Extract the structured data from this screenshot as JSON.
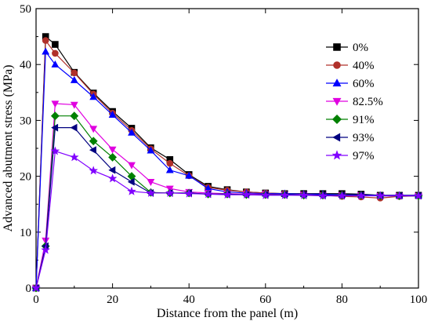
{
  "chart_data": {
    "type": "line",
    "xlabel": "Distance from the panel (m)",
    "ylabel": "Advanced abutment stress (MPa)",
    "xlim": [
      0,
      100
    ],
    "ylim": [
      0,
      50
    ],
    "xticks": [
      0,
      20,
      40,
      60,
      80,
      100
    ],
    "yticks": [
      0,
      10,
      20,
      30,
      40,
      50
    ],
    "grid": false,
    "legend_position": "top-right",
    "series": [
      {
        "name": "0%",
        "color": "#000000",
        "marker": "square",
        "x": [
          0,
          2.5,
          5,
          10,
          15,
          20,
          25,
          30,
          35,
          40,
          45,
          50,
          55,
          60,
          65,
          70,
          75,
          80,
          85,
          90,
          95,
          100
        ],
        "y": [
          0,
          45.0,
          43.6,
          38.6,
          34.9,
          31.6,
          28.6,
          25.1,
          23.0,
          20.3,
          18.2,
          17.6,
          17.2,
          17.0,
          16.9,
          16.9,
          16.9,
          16.9,
          16.8,
          16.6,
          16.6,
          16.6
        ]
      },
      {
        "name": "40%",
        "color": "#b0302a",
        "marker": "circle",
        "x": [
          0,
          2.5,
          5,
          10,
          15,
          20,
          25,
          30,
          35,
          40,
          45,
          50,
          55,
          60,
          65,
          70,
          75,
          80,
          85,
          90,
          95,
          100
        ],
        "y": [
          0,
          44.3,
          42.0,
          38.5,
          34.7,
          31.3,
          28.2,
          24.9,
          22.3,
          20.1,
          18.0,
          17.5,
          17.2,
          17.0,
          16.9,
          16.7,
          16.6,
          16.4,
          16.3,
          16.1,
          16.4,
          16.5
        ]
      },
      {
        "name": "60%",
        "color": "#0000ff",
        "marker": "triangle-up",
        "x": [
          0,
          2.5,
          5,
          10,
          15,
          20,
          25,
          30,
          35,
          40,
          45,
          50,
          55,
          60,
          65,
          70,
          75,
          80,
          85,
          90,
          95,
          100
        ],
        "y": [
          0,
          42.3,
          40.0,
          37.2,
          34.2,
          31.0,
          27.8,
          24.6,
          21.1,
          20.1,
          17.8,
          17.2,
          17.0,
          16.9,
          16.9,
          16.8,
          16.8,
          16.7,
          16.7,
          16.6,
          16.6,
          16.6
        ]
      },
      {
        "name": "82.5%",
        "color": "#e000e0",
        "marker": "triangle-down",
        "x": [
          0,
          2.5,
          5,
          10,
          15,
          20,
          25,
          30,
          35,
          40,
          45,
          50,
          55,
          60,
          65,
          70,
          75,
          80,
          85,
          90,
          95,
          100
        ],
        "y": [
          0,
          8.5,
          33.0,
          32.8,
          28.5,
          24.8,
          22.0,
          19.0,
          17.8,
          17.2,
          17.0,
          16.9,
          16.8,
          16.8,
          16.7,
          16.7,
          16.6,
          16.6,
          16.6,
          16.5,
          16.5,
          16.5
        ]
      },
      {
        "name": "91%",
        "color": "#008000",
        "marker": "diamond",
        "x": [
          0,
          2.5,
          5,
          10,
          15,
          20,
          25,
          30,
          35,
          40,
          45,
          50,
          55,
          60,
          65,
          70,
          75,
          80,
          85,
          90,
          95,
          100
        ],
        "y": [
          0,
          7.5,
          30.8,
          30.8,
          26.3,
          23.4,
          20.0,
          17.1,
          17.0,
          17.0,
          16.8,
          16.8,
          16.7,
          16.7,
          16.7,
          16.6,
          16.6,
          16.6,
          16.6,
          16.5,
          16.5,
          16.5
        ]
      },
      {
        "name": "93%",
        "color": "#000080",
        "marker": "triangle-left",
        "x": [
          0,
          2.5,
          5,
          10,
          15,
          20,
          25,
          30,
          35,
          40,
          45,
          50,
          55,
          60,
          65,
          70,
          75,
          80,
          85,
          90,
          95,
          100
        ],
        "y": [
          0,
          7.5,
          28.7,
          28.7,
          24.7,
          21.1,
          19.0,
          17.0,
          17.0,
          17.0,
          16.8,
          16.8,
          16.7,
          16.7,
          16.7,
          16.6,
          16.6,
          16.6,
          16.6,
          16.5,
          16.5,
          16.5
        ]
      },
      {
        "name": "97%",
        "color": "#8000ff",
        "marker": "star",
        "x": [
          0,
          2.5,
          5,
          10,
          15,
          20,
          25,
          30,
          35,
          40,
          45,
          50,
          55,
          60,
          65,
          70,
          75,
          80,
          85,
          90,
          95,
          100
        ],
        "y": [
          0,
          6.8,
          24.5,
          23.4,
          21.0,
          19.6,
          17.3,
          17.0,
          17.0,
          16.9,
          16.8,
          16.7,
          16.7,
          16.6,
          16.6,
          16.6,
          16.5,
          16.5,
          16.5,
          16.5,
          16.5,
          16.5
        ]
      }
    ]
  }
}
